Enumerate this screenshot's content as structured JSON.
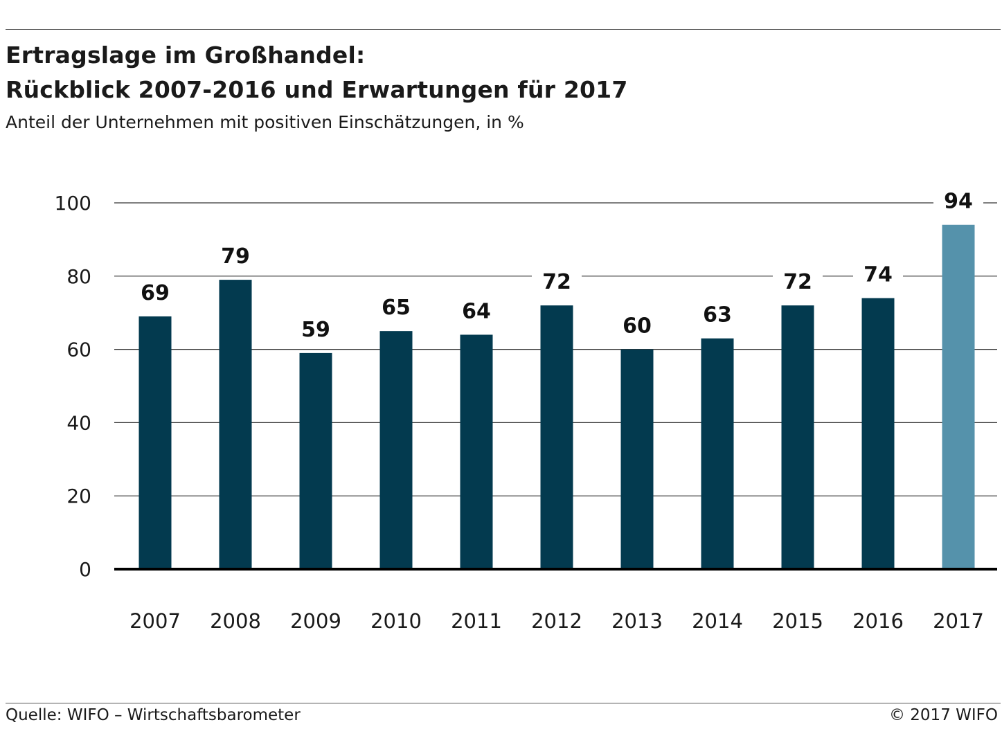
{
  "chart_data": {
    "type": "bar",
    "title": "Ertragslage im Großhandel:",
    "title_line2": "Rückblick 2007-2016 und Erwartungen für 2017",
    "subtitle": "Anteil der Unternehmen mit positiven Einschätzungen, in %",
    "categories": [
      "2007",
      "2008",
      "2009",
      "2010",
      "2011",
      "2012",
      "2013",
      "2014",
      "2015",
      "2016",
      "2017"
    ],
    "values": [
      69,
      79,
      59,
      65,
      64,
      72,
      60,
      63,
      72,
      74,
      94
    ],
    "value_labels": [
      "69",
      "79",
      "59",
      "65",
      "64",
      "72",
      "60",
      "63",
      "72",
      "74",
      "94"
    ],
    "highlight_index": 10,
    "ylim": [
      0,
      100
    ],
    "yticks": [
      0,
      20,
      40,
      60,
      80,
      100
    ],
    "xlabel": "",
    "ylabel": "",
    "grid": true,
    "colors": {
      "bar": "#033a4f",
      "highlight": "#5592ab",
      "grid": "#333333",
      "axis": "#000000"
    }
  },
  "footer": {
    "source": "Quelle: WIFO – Wirtschaftsbarometer",
    "copyright": "© 2017 WIFO"
  }
}
